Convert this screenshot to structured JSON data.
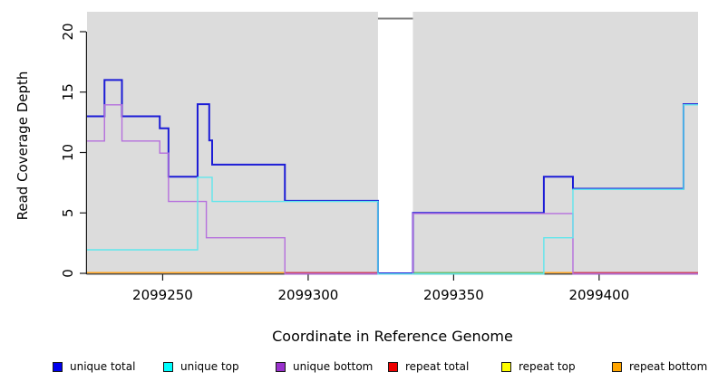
{
  "figure": {
    "x_axis_title": "Coordinate in Reference Genome",
    "y_axis_title": "Read Coverage Depth"
  },
  "legend": {
    "items": [
      {
        "label": "unique total",
        "color": "#0000EE"
      },
      {
        "label": "unique top",
        "color": "#00FFFF"
      },
      {
        "label": "unique bottom",
        "color": "#9A32CD"
      },
      {
        "label": "repeat total",
        "color": "#EE0000"
      },
      {
        "label": "repeat top",
        "color": "#FFFF00"
      },
      {
        "label": "repeat bottom",
        "color": "#FFA500"
      }
    ]
  },
  "chart_data": {
    "type": "line",
    "subtype": "step-coverage",
    "title": "",
    "xlabel": "Coordinate in Reference Genome",
    "ylabel": "Read Coverage Depth",
    "xlim": [
      2099224,
      2099434
    ],
    "ylim": [
      0,
      21.1
    ],
    "x_ticks": [
      2099250,
      2099300,
      2099350,
      2099400
    ],
    "y_ticks": [
      0,
      5,
      10,
      15,
      20
    ],
    "grid": false,
    "legend_position": "bottom",
    "plot_background": "#DCDCDC",
    "no_data_region": [
      2099324,
      2099336
    ],
    "series": [
      {
        "name": "unique total",
        "color": "#0000EE",
        "render_color": "#1C1CD6",
        "segments": [
          [
            2099224,
            2099230,
            13
          ],
          [
            2099230,
            2099236,
            16
          ],
          [
            2099236,
            2099249,
            13
          ],
          [
            2099249,
            2099252,
            12
          ],
          [
            2099252,
            2099262,
            8
          ],
          [
            2099262,
            2099266,
            14
          ],
          [
            2099266,
            2099267,
            11
          ],
          [
            2099267,
            2099292,
            9
          ],
          [
            2099292,
            2099324,
            6
          ],
          [
            2099324,
            2099336,
            0
          ],
          [
            2099336,
            2099381,
            5
          ],
          [
            2099381,
            2099391,
            8
          ],
          [
            2099391,
            2099429,
            7
          ],
          [
            2099429,
            2099434,
            14
          ]
        ]
      },
      {
        "name": "unique top",
        "color": "#00FFFF",
        "render_color": "#5FE6EC",
        "segments": [
          [
            2099224,
            2099262,
            2
          ],
          [
            2099262,
            2099267,
            8
          ],
          [
            2099267,
            2099324,
            6
          ],
          [
            2099324,
            2099381,
            0
          ],
          [
            2099381,
            2099391,
            3
          ],
          [
            2099391,
            2099429,
            7
          ],
          [
            2099429,
            2099434,
            14
          ]
        ]
      },
      {
        "name": "unique bottom",
        "color": "#9A32CD",
        "render_color": "#B56FDD",
        "segments": [
          [
            2099224,
            2099230,
            11
          ],
          [
            2099230,
            2099236,
            14
          ],
          [
            2099236,
            2099249,
            11
          ],
          [
            2099249,
            2099252,
            10
          ],
          [
            2099252,
            2099265,
            6
          ],
          [
            2099265,
            2099292,
            3
          ],
          [
            2099292,
            2099336,
            0
          ],
          [
            2099336,
            2099391,
            5
          ],
          [
            2099391,
            2099434,
            0
          ]
        ]
      },
      {
        "name": "repeat total",
        "color": "#EE0000",
        "render_color": "#CC4466",
        "segments": [
          [
            2099224,
            2099434,
            0
          ]
        ]
      },
      {
        "name": "repeat top",
        "color": "#FFFF00",
        "render_color": "#EDE96A",
        "segments": [
          [
            2099224,
            2099434,
            0
          ]
        ]
      },
      {
        "name": "repeat bottom",
        "color": "#FFA500",
        "render_color": "#FFA520",
        "segments": [
          [
            2099224,
            2099434,
            0
          ]
        ]
      }
    ],
    "zero_line_segments": [
      {
        "from": 2099336,
        "to": 2099381,
        "color": "#EDE96A",
        "dy": 1.2
      },
      {
        "from": 2099224,
        "to": 2099292,
        "color": "#FFA520",
        "dy": 0
      },
      {
        "from": 2099292,
        "to": 2099324,
        "color": "#CC4466",
        "dy": 0
      },
      {
        "from": 2099336,
        "to": 2099381,
        "color": "#6FBF72",
        "dy": 0
      },
      {
        "from": 2099381,
        "to": 2099391,
        "color": "#FFA520",
        "dy": 0
      },
      {
        "from": 2099391,
        "to": 2099434,
        "color": "#CC4466",
        "dy": 0
      }
    ]
  }
}
